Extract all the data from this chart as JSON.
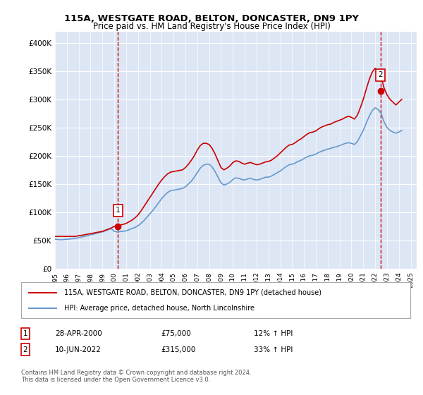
{
  "title1": "115A, WESTGATE ROAD, BELTON, DONCASTER, DN9 1PY",
  "title2": "Price paid vs. HM Land Registry's House Price Index (HPI)",
  "ylabel_ticks": [
    "£0",
    "£50K",
    "£100K",
    "£150K",
    "£200K",
    "£250K",
    "£300K",
    "£350K",
    "£400K"
  ],
  "ytick_vals": [
    0,
    50000,
    100000,
    150000,
    200000,
    250000,
    300000,
    350000,
    400000
  ],
  "ylim": [
    0,
    420000
  ],
  "xlim_start": 1995.0,
  "xlim_end": 2025.5,
  "xtick_years": [
    1995,
    1996,
    1997,
    1998,
    1999,
    2000,
    2001,
    2002,
    2003,
    2004,
    2005,
    2006,
    2007,
    2008,
    2009,
    2010,
    2011,
    2012,
    2013,
    2014,
    2015,
    2016,
    2017,
    2018,
    2019,
    2020,
    2021,
    2022,
    2023,
    2024,
    2025
  ],
  "bg_color": "#dce6f5",
  "plot_bg": "#dce6f5",
  "grid_color": "#ffffff",
  "red_line_color": "#cc0000",
  "blue_line_color": "#6699cc",
  "legend_label1": "115A, WESTGATE ROAD, BELTON, DONCASTER, DN9 1PY (detached house)",
  "legend_label2": "HPI: Average price, detached house, North Lincolnshire",
  "annotation1_num": "1",
  "annotation1_date": "28-APR-2000",
  "annotation1_price": "£75,000",
  "annotation1_hpi": "12% ↑ HPI",
  "annotation2_num": "2",
  "annotation2_date": "10-JUN-2022",
  "annotation2_price": "£315,000",
  "annotation2_hpi": "33% ↑ HPI",
  "footer": "Contains HM Land Registry data © Crown copyright and database right 2024.\nThis data is licensed under the Open Government Licence v3.0.",
  "sale1_x": 2000.32,
  "sale1_y": 75000,
  "sale2_x": 2022.45,
  "sale2_y": 315000,
  "hpi_data_x": [
    1995.0,
    1995.25,
    1995.5,
    1995.75,
    1996.0,
    1996.25,
    1996.5,
    1996.75,
    1997.0,
    1997.25,
    1997.5,
    1997.75,
    1998.0,
    1998.25,
    1998.5,
    1998.75,
    1999.0,
    1999.25,
    1999.5,
    1999.75,
    2000.0,
    2000.25,
    2000.5,
    2000.75,
    2001.0,
    2001.25,
    2001.5,
    2001.75,
    2002.0,
    2002.25,
    2002.5,
    2002.75,
    2003.0,
    2003.25,
    2003.5,
    2003.75,
    2004.0,
    2004.25,
    2004.5,
    2004.75,
    2005.0,
    2005.25,
    2005.5,
    2005.75,
    2006.0,
    2006.25,
    2006.5,
    2006.75,
    2007.0,
    2007.25,
    2007.5,
    2007.75,
    2008.0,
    2008.25,
    2008.5,
    2008.75,
    2009.0,
    2009.25,
    2009.5,
    2009.75,
    2010.0,
    2010.25,
    2010.5,
    2010.75,
    2011.0,
    2011.25,
    2011.5,
    2011.75,
    2012.0,
    2012.25,
    2012.5,
    2012.75,
    2013.0,
    2013.25,
    2013.5,
    2013.75,
    2014.0,
    2014.25,
    2014.5,
    2014.75,
    2015.0,
    2015.25,
    2015.5,
    2015.75,
    2016.0,
    2016.25,
    2016.5,
    2016.75,
    2017.0,
    2017.25,
    2017.5,
    2017.75,
    2018.0,
    2018.25,
    2018.5,
    2018.75,
    2019.0,
    2019.25,
    2019.5,
    2019.75,
    2020.0,
    2020.25,
    2020.5,
    2020.75,
    2021.0,
    2021.25,
    2021.5,
    2021.75,
    2022.0,
    2022.25,
    2022.5,
    2022.75,
    2023.0,
    2023.25,
    2023.5,
    2023.75,
    2024.0,
    2024.25
  ],
  "hpi_data_y": [
    52000,
    51500,
    51000,
    51500,
    52000,
    52500,
    53000,
    53500,
    55000,
    56000,
    57000,
    58500,
    60000,
    61000,
    62500,
    64000,
    65000,
    67000,
    69000,
    71000,
    66000,
    65000,
    65500,
    66000,
    67000,
    69000,
    71000,
    73000,
    76000,
    80000,
    85000,
    91000,
    97000,
    103000,
    110000,
    117000,
    124000,
    130000,
    135000,
    138000,
    139000,
    140000,
    141000,
    142000,
    145000,
    150000,
    155000,
    162000,
    170000,
    178000,
    183000,
    185000,
    185000,
    180000,
    172000,
    162000,
    152000,
    148000,
    150000,
    153000,
    158000,
    161000,
    160000,
    158000,
    157000,
    159000,
    160000,
    158000,
    157000,
    158000,
    160000,
    162000,
    162000,
    164000,
    167000,
    170000,
    173000,
    177000,
    181000,
    184000,
    185000,
    187000,
    190000,
    192000,
    195000,
    198000,
    200000,
    201000,
    203000,
    206000,
    208000,
    210000,
    212000,
    213000,
    215000,
    216000,
    218000,
    220000,
    222000,
    223000,
    222000,
    220000,
    225000,
    235000,
    245000,
    258000,
    270000,
    280000,
    285000,
    282000,
    275000,
    260000,
    250000,
    245000,
    242000,
    240000,
    242000,
    245000
  ],
  "red_data_x": [
    1995.0,
    1995.25,
    1995.5,
    1995.75,
    1996.0,
    1996.25,
    1996.5,
    1996.75,
    1997.0,
    1997.25,
    1997.5,
    1997.75,
    1998.0,
    1998.25,
    1998.5,
    1998.75,
    1999.0,
    1999.25,
    1999.5,
    1999.75,
    2000.0,
    2000.25,
    2000.5,
    2000.75,
    2001.0,
    2001.25,
    2001.5,
    2001.75,
    2002.0,
    2002.25,
    2002.5,
    2002.75,
    2003.0,
    2003.25,
    2003.5,
    2003.75,
    2004.0,
    2004.25,
    2004.5,
    2004.75,
    2005.0,
    2005.25,
    2005.5,
    2005.75,
    2006.0,
    2006.25,
    2006.5,
    2006.75,
    2007.0,
    2007.25,
    2007.5,
    2007.75,
    2008.0,
    2008.25,
    2008.5,
    2008.75,
    2009.0,
    2009.25,
    2009.5,
    2009.75,
    2010.0,
    2010.25,
    2010.5,
    2010.75,
    2011.0,
    2011.25,
    2011.5,
    2011.75,
    2012.0,
    2012.25,
    2012.5,
    2012.75,
    2013.0,
    2013.25,
    2013.5,
    2013.75,
    2014.0,
    2014.25,
    2014.5,
    2014.75,
    2015.0,
    2015.25,
    2015.5,
    2015.75,
    2016.0,
    2016.25,
    2016.5,
    2016.75,
    2017.0,
    2017.25,
    2017.5,
    2017.75,
    2018.0,
    2018.25,
    2018.5,
    2018.75,
    2019.0,
    2019.25,
    2019.5,
    2019.75,
    2020.0,
    2020.25,
    2020.5,
    2020.75,
    2021.0,
    2021.25,
    2021.5,
    2021.75,
    2022.0,
    2022.25,
    2022.5,
    2022.75,
    2023.0,
    2023.25,
    2023.5,
    2023.75,
    2024.0,
    2024.25
  ],
  "red_data_y": [
    57000,
    57000,
    57000,
    57000,
    57000,
    57000,
    57000,
    57000,
    58500,
    59000,
    60000,
    61000,
    62000,
    63000,
    64000,
    65000,
    66000,
    68000,
    70000,
    72000,
    75000,
    76000,
    77000,
    78500,
    80000,
    83000,
    86000,
    90000,
    95000,
    102000,
    110000,
    118000,
    126000,
    134000,
    142000,
    150000,
    157000,
    163000,
    168000,
    171000,
    172000,
    173000,
    174000,
    175000,
    179000,
    185000,
    192000,
    200000,
    210000,
    218000,
    222000,
    222000,
    220000,
    213000,
    203000,
    191000,
    179000,
    175000,
    178000,
    182000,
    188000,
    191000,
    190000,
    187000,
    185000,
    187000,
    188000,
    186000,
    184000,
    185000,
    187000,
    189000,
    190000,
    192000,
    196000,
    200000,
    205000,
    210000,
    215000,
    219000,
    220000,
    223000,
    227000,
    230000,
    234000,
    238000,
    241000,
    242000,
    244000,
    248000,
    251000,
    253000,
    255000,
    256000,
    259000,
    261000,
    263000,
    265000,
    268000,
    270000,
    268000,
    265000,
    272000,
    285000,
    300000,
    318000,
    335000,
    348000,
    355000,
    350000,
    340000,
    320000,
    308000,
    300000,
    295000,
    290000,
    295000,
    300000
  ]
}
